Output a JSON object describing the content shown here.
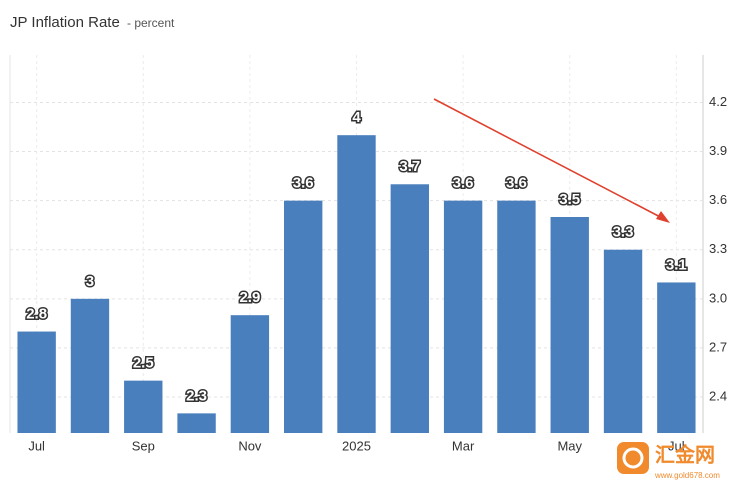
{
  "chart_data": {
    "type": "bar",
    "title": "JP Inflation Rate",
    "subtitle": "- percent",
    "categories": [
      "Jul",
      null,
      "Sep",
      null,
      "Nov",
      null,
      "2025",
      null,
      "Mar",
      null,
      "May",
      null,
      "Jul"
    ],
    "values": [
      2.8,
      3,
      2.5,
      2.3,
      2.9,
      3.6,
      4,
      3.7,
      3.6,
      3.6,
      3.5,
      3.3,
      3.1
    ],
    "color": "#4a7fbd",
    "ylim": [
      2.18,
      4.49
    ],
    "yticks": [
      2.4,
      2.7,
      {
        "value": 3,
        "label": "3.0"
      },
      3.3,
      3.6,
      3.9,
      4.2
    ],
    "grid": true,
    "watermark": "汇金网",
    "watermark_url": "www.gold678.com"
  }
}
